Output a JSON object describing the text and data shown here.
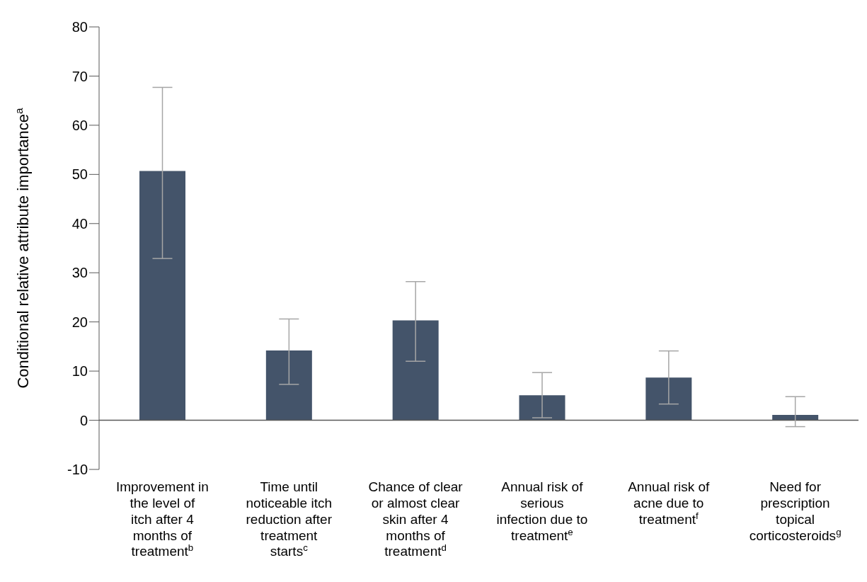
{
  "chart_data": {
    "type": "bar",
    "ylabel": "Conditional relative attribute importance$^{a}$",
    "categories": [
      "Improvement in the level of itch after 4 months of treatment$^{b}$",
      "Time until noticeable itch reduction after treatment starts$^{c}$",
      "Chance of clear or almost clear skin after 4 months of treatment$^{d}$",
      "Annual risk of serious infection due to treatment$^{e}$",
      "Annual risk of acne due to treatment$^{f}$",
      "Need for prescription topical corticosteroids$^{g}$"
    ],
    "values": [
      50.7,
      14.2,
      20.3,
      5.1,
      8.7,
      1.1
    ],
    "errors": [
      [
        32.9,
        67.7
      ],
      [
        7.3,
        20.6
      ],
      [
        12.0,
        28.2
      ],
      [
        0.5,
        9.7
      ],
      [
        3.3,
        14.1
      ],
      [
        -1.3,
        4.8
      ]
    ],
    "color": "#44546a",
    "ylim": [
      -10,
      80
    ],
    "yticks": [
      -10,
      0,
      10,
      20,
      30,
      40,
      50,
      60,
      70,
      80
    ]
  }
}
